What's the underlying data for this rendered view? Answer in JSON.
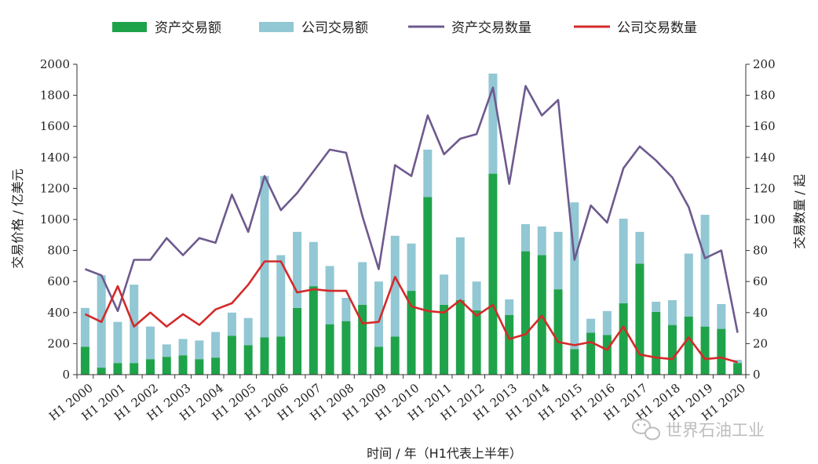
{
  "chart_data": {
    "type": "bar",
    "stacked": true,
    "xlabel": "时间 / 年（H1代表上半年）",
    "ylabel_left": "交易价格 / 亿美元",
    "ylabel_right": "交易数量 / 起",
    "ylim_left": [
      0,
      2000
    ],
    "ylim_right": [
      0,
      200
    ],
    "yticks_left": [
      0,
      200,
      400,
      600,
      800,
      1000,
      1200,
      1400,
      1600,
      1800,
      2000
    ],
    "yticks_right": [
      0,
      20,
      40,
      60,
      80,
      100,
      120,
      140,
      160,
      180,
      200
    ],
    "grid": false,
    "legend_position": "top",
    "tick_labels": [
      "H1 2000",
      "H1 2001",
      "H1 2002",
      "H1 2003",
      "H1 2004",
      "H1 2005",
      "H1 2006",
      "H1 2007",
      "H1 2008",
      "H1 2009",
      "H1 2010",
      "H1 2011",
      "H1 2012",
      "H1 2013",
      "H1 2014",
      "H1 2015",
      "H1 2016",
      "H1 2017",
      "H1 2018",
      "H1 2019",
      "H1 2020"
    ],
    "num_periods": 41,
    "series": [
      {
        "name": "资产交易额",
        "kind": "bar",
        "axis": "left",
        "color": "#1fa34a",
        "values": [
          180,
          45,
          75,
          75,
          100,
          115,
          125,
          100,
          110,
          250,
          190,
          240,
          245,
          430,
          570,
          325,
          345,
          450,
          180,
          245,
          540,
          1145,
          450,
          480,
          415,
          1295,
          385,
          795,
          770,
          550,
          165,
          270,
          255,
          460,
          715,
          405,
          320,
          375,
          310,
          295,
          75
        ]
      },
      {
        "name": "公司交易额",
        "kind": "bar",
        "axis": "left",
        "color": "#92c7d4",
        "values": [
          250,
          595,
          265,
          505,
          210,
          80,
          105,
          120,
          165,
          150,
          175,
          1040,
          525,
          490,
          285,
          375,
          150,
          275,
          420,
          650,
          305,
          305,
          195,
          405,
          185,
          645,
          100,
          175,
          185,
          370,
          945,
          90,
          155,
          545,
          205,
          65,
          160,
          405,
          720,
          160,
          20
        ]
      },
      {
        "name": "资产交易数量",
        "kind": "line",
        "axis": "right",
        "color": "#6d5a8e",
        "values": [
          68,
          64,
          41,
          74,
          74,
          88,
          77,
          88,
          85,
          116,
          92,
          128,
          106,
          117,
          131,
          145,
          143,
          102,
          68,
          135,
          128,
          167,
          142,
          152,
          155,
          185,
          123,
          186,
          167,
          177,
          74,
          109,
          98,
          133,
          147,
          138,
          127,
          108,
          75,
          80,
          27
        ]
      },
      {
        "name": "公司交易数量",
        "kind": "line",
        "axis": "right",
        "color": "#d42a2a",
        "values": [
          39,
          34,
          57,
          31,
          40,
          31,
          39,
          32,
          42,
          46,
          58,
          73,
          73,
          53,
          55,
          54,
          54,
          33,
          34,
          63,
          44,
          41,
          40,
          48,
          38,
          45,
          23,
          26,
          38,
          21,
          19,
          21,
          16,
          31,
          13,
          11,
          10,
          24,
          10,
          11,
          8
        ]
      }
    ]
  },
  "watermark": {
    "text": "世界石油工业",
    "icon": "wechat-icon"
  }
}
